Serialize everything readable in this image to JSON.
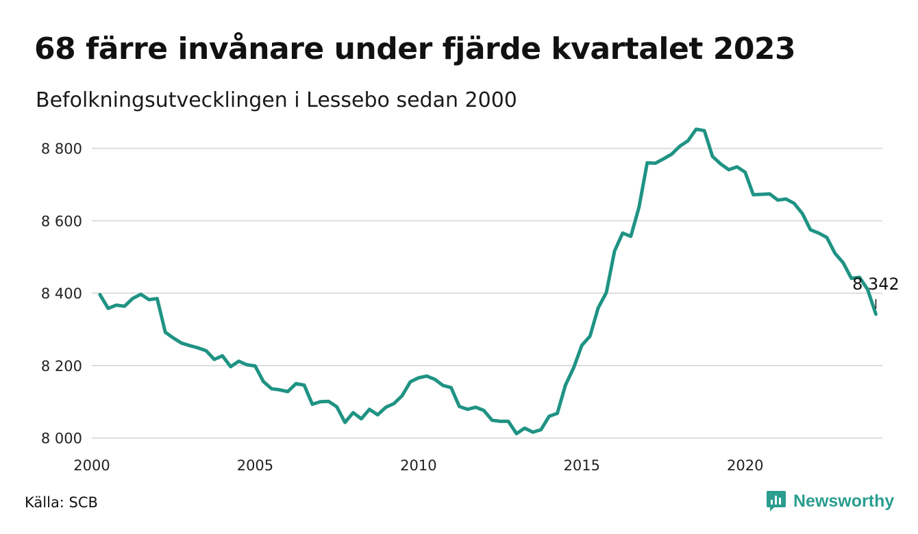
{
  "title": "68 färre invånare under fjärde kvartalet 2023",
  "subtitle": "Befolkningsutvecklingen i Lessebo sedan 2000",
  "source": "Källa: SCB",
  "brand": {
    "name": "Newsworthy",
    "icon": "newsworthy-logo-icon"
  },
  "colors": {
    "line": "#1f9384",
    "grid": "#dddddd",
    "brand": "#2a9d8f"
  },
  "chart_data": {
    "type": "line",
    "title": "68 färre invånare under fjärde kvartalet 2023",
    "subtitle": "Befolkningsutvecklingen i Lessebo sedan 2000",
    "xlabel": "",
    "ylabel": "",
    "xlim": [
      2000,
      2024.2
    ],
    "ylim": [
      7990,
      8860
    ],
    "x_ticks": [
      2000,
      2005,
      2010,
      2015,
      2020
    ],
    "x_tick_labels": [
      "2000",
      "2005",
      "2010",
      "2015",
      "2020"
    ],
    "y_ticks": [
      8000,
      8200,
      8400,
      8600,
      8800
    ],
    "y_tick_labels": [
      "8 000",
      "8 200",
      "8 400",
      "8 600",
      "8 800"
    ],
    "grid": true,
    "legend": "none",
    "end_label": "8 342",
    "series": [
      {
        "values": [
          [
            2000.25,
            8396
          ],
          [
            2000.5,
            8358
          ],
          [
            2000.75,
            8367
          ],
          [
            2001.0,
            8364
          ],
          [
            2001.25,
            8385
          ],
          [
            2001.5,
            8397
          ],
          [
            2001.75,
            8382
          ],
          [
            2002.0,
            8385
          ],
          [
            2002.25,
            8292
          ],
          [
            2002.5,
            8276
          ],
          [
            2002.75,
            8262
          ],
          [
            2003.0,
            8255
          ],
          [
            2003.25,
            8249
          ],
          [
            2003.5,
            8241
          ],
          [
            2003.75,
            8217
          ],
          [
            2004.0,
            8227
          ],
          [
            2004.25,
            8197
          ],
          [
            2004.5,
            8212
          ],
          [
            2004.75,
            8202
          ],
          [
            2005.0,
            8199
          ],
          [
            2005.25,
            8156
          ],
          [
            2005.5,
            8136
          ],
          [
            2005.75,
            8133
          ],
          [
            2006.0,
            8128
          ],
          [
            2006.25,
            8150
          ],
          [
            2006.5,
            8146
          ],
          [
            2006.75,
            8093
          ],
          [
            2007.0,
            8100
          ],
          [
            2007.25,
            8101
          ],
          [
            2007.5,
            8086
          ],
          [
            2007.75,
            8043
          ],
          [
            2008.0,
            8070
          ],
          [
            2008.25,
            8053
          ],
          [
            2008.5,
            8079
          ],
          [
            2008.75,
            8064
          ],
          [
            2009.0,
            8085
          ],
          [
            2009.25,
            8095
          ],
          [
            2009.5,
            8117
          ],
          [
            2009.75,
            8155
          ],
          [
            2010.0,
            8166
          ],
          [
            2010.25,
            8171
          ],
          [
            2010.5,
            8162
          ],
          [
            2010.75,
            8145
          ],
          [
            2011.0,
            8139
          ],
          [
            2011.25,
            8087
          ],
          [
            2011.5,
            8079
          ],
          [
            2011.75,
            8085
          ],
          [
            2012.0,
            8076
          ],
          [
            2012.25,
            8049
          ],
          [
            2012.5,
            8046
          ],
          [
            2012.75,
            8046
          ],
          [
            2013.0,
            8012
          ],
          [
            2013.25,
            8027
          ],
          [
            2013.5,
            8016
          ],
          [
            2013.75,
            8023
          ],
          [
            2014.0,
            8060
          ],
          [
            2014.25,
            8068
          ],
          [
            2014.5,
            8146
          ],
          [
            2014.75,
            8194
          ],
          [
            2015.0,
            8256
          ],
          [
            2015.25,
            8281
          ],
          [
            2015.5,
            8359
          ],
          [
            2015.75,
            8402
          ],
          [
            2016.0,
            8516
          ],
          [
            2016.25,
            8566
          ],
          [
            2016.5,
            8557
          ],
          [
            2016.75,
            8637
          ],
          [
            2017.0,
            8760
          ],
          [
            2017.25,
            8759
          ],
          [
            2017.5,
            8771
          ],
          [
            2017.75,
            8784
          ],
          [
            2018.0,
            8806
          ],
          [
            2018.25,
            8821
          ],
          [
            2018.5,
            8853
          ],
          [
            2018.75,
            8849
          ],
          [
            2019.0,
            8778
          ],
          [
            2019.25,
            8757
          ],
          [
            2019.5,
            8741
          ],
          [
            2019.75,
            8749
          ],
          [
            2020.0,
            8734
          ],
          [
            2020.25,
            8672
          ],
          [
            2020.5,
            8673
          ],
          [
            2020.75,
            8674
          ],
          [
            2021.0,
            8657
          ],
          [
            2021.25,
            8660
          ],
          [
            2021.5,
            8648
          ],
          [
            2021.75,
            8620
          ],
          [
            2022.0,
            8575
          ],
          [
            2022.25,
            8566
          ],
          [
            2022.5,
            8554
          ],
          [
            2022.75,
            8510
          ],
          [
            2023.0,
            8484
          ],
          [
            2023.25,
            8441
          ],
          [
            2023.5,
            8444
          ],
          [
            2023.75,
            8410
          ],
          [
            2024.0,
            8342
          ]
        ]
      }
    ]
  }
}
